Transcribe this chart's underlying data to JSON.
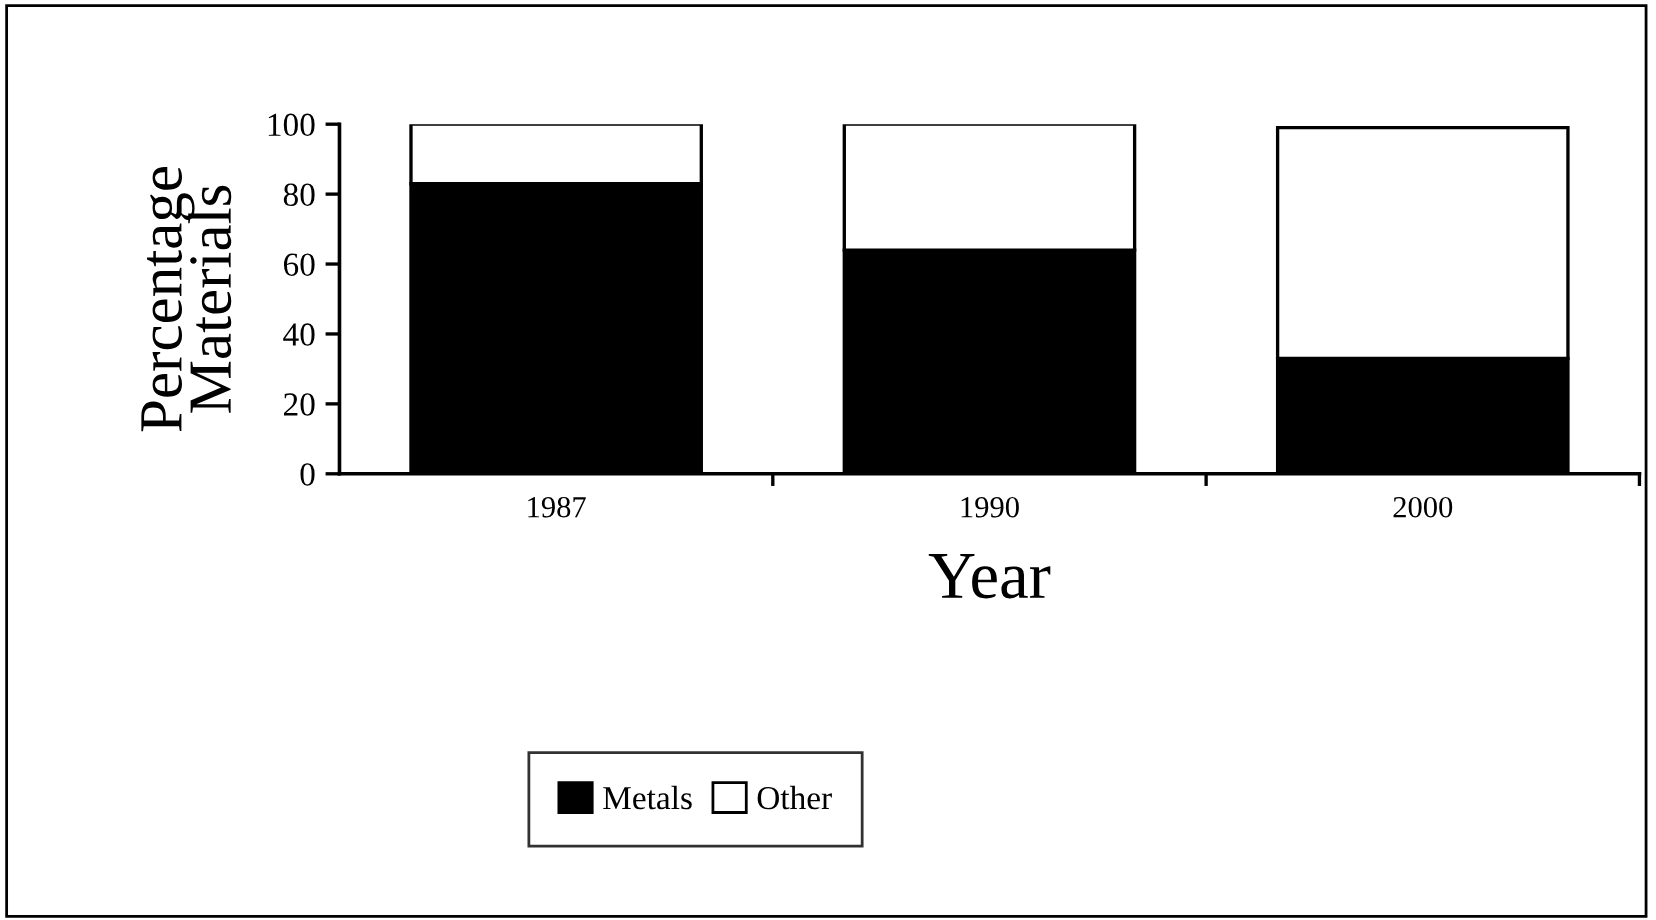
{
  "chart_data": {
    "type": "bar",
    "stacked": true,
    "categories": [
      "1987",
      "1990",
      "2000"
    ],
    "series": [
      {
        "name": "Metals",
        "color": "#000000",
        "values": [
          83,
          64,
          33
        ]
      },
      {
        "name": "Other",
        "color": "#ffffff",
        "values": [
          17,
          36,
          66
        ]
      }
    ],
    "xlabel": "Year",
    "ylabel": "Percentage\nMaterials",
    "ylim": [
      0,
      100
    ],
    "yticks": [
      0,
      20,
      40,
      60,
      80,
      100
    ],
    "grid": false,
    "legend": "bottom"
  }
}
